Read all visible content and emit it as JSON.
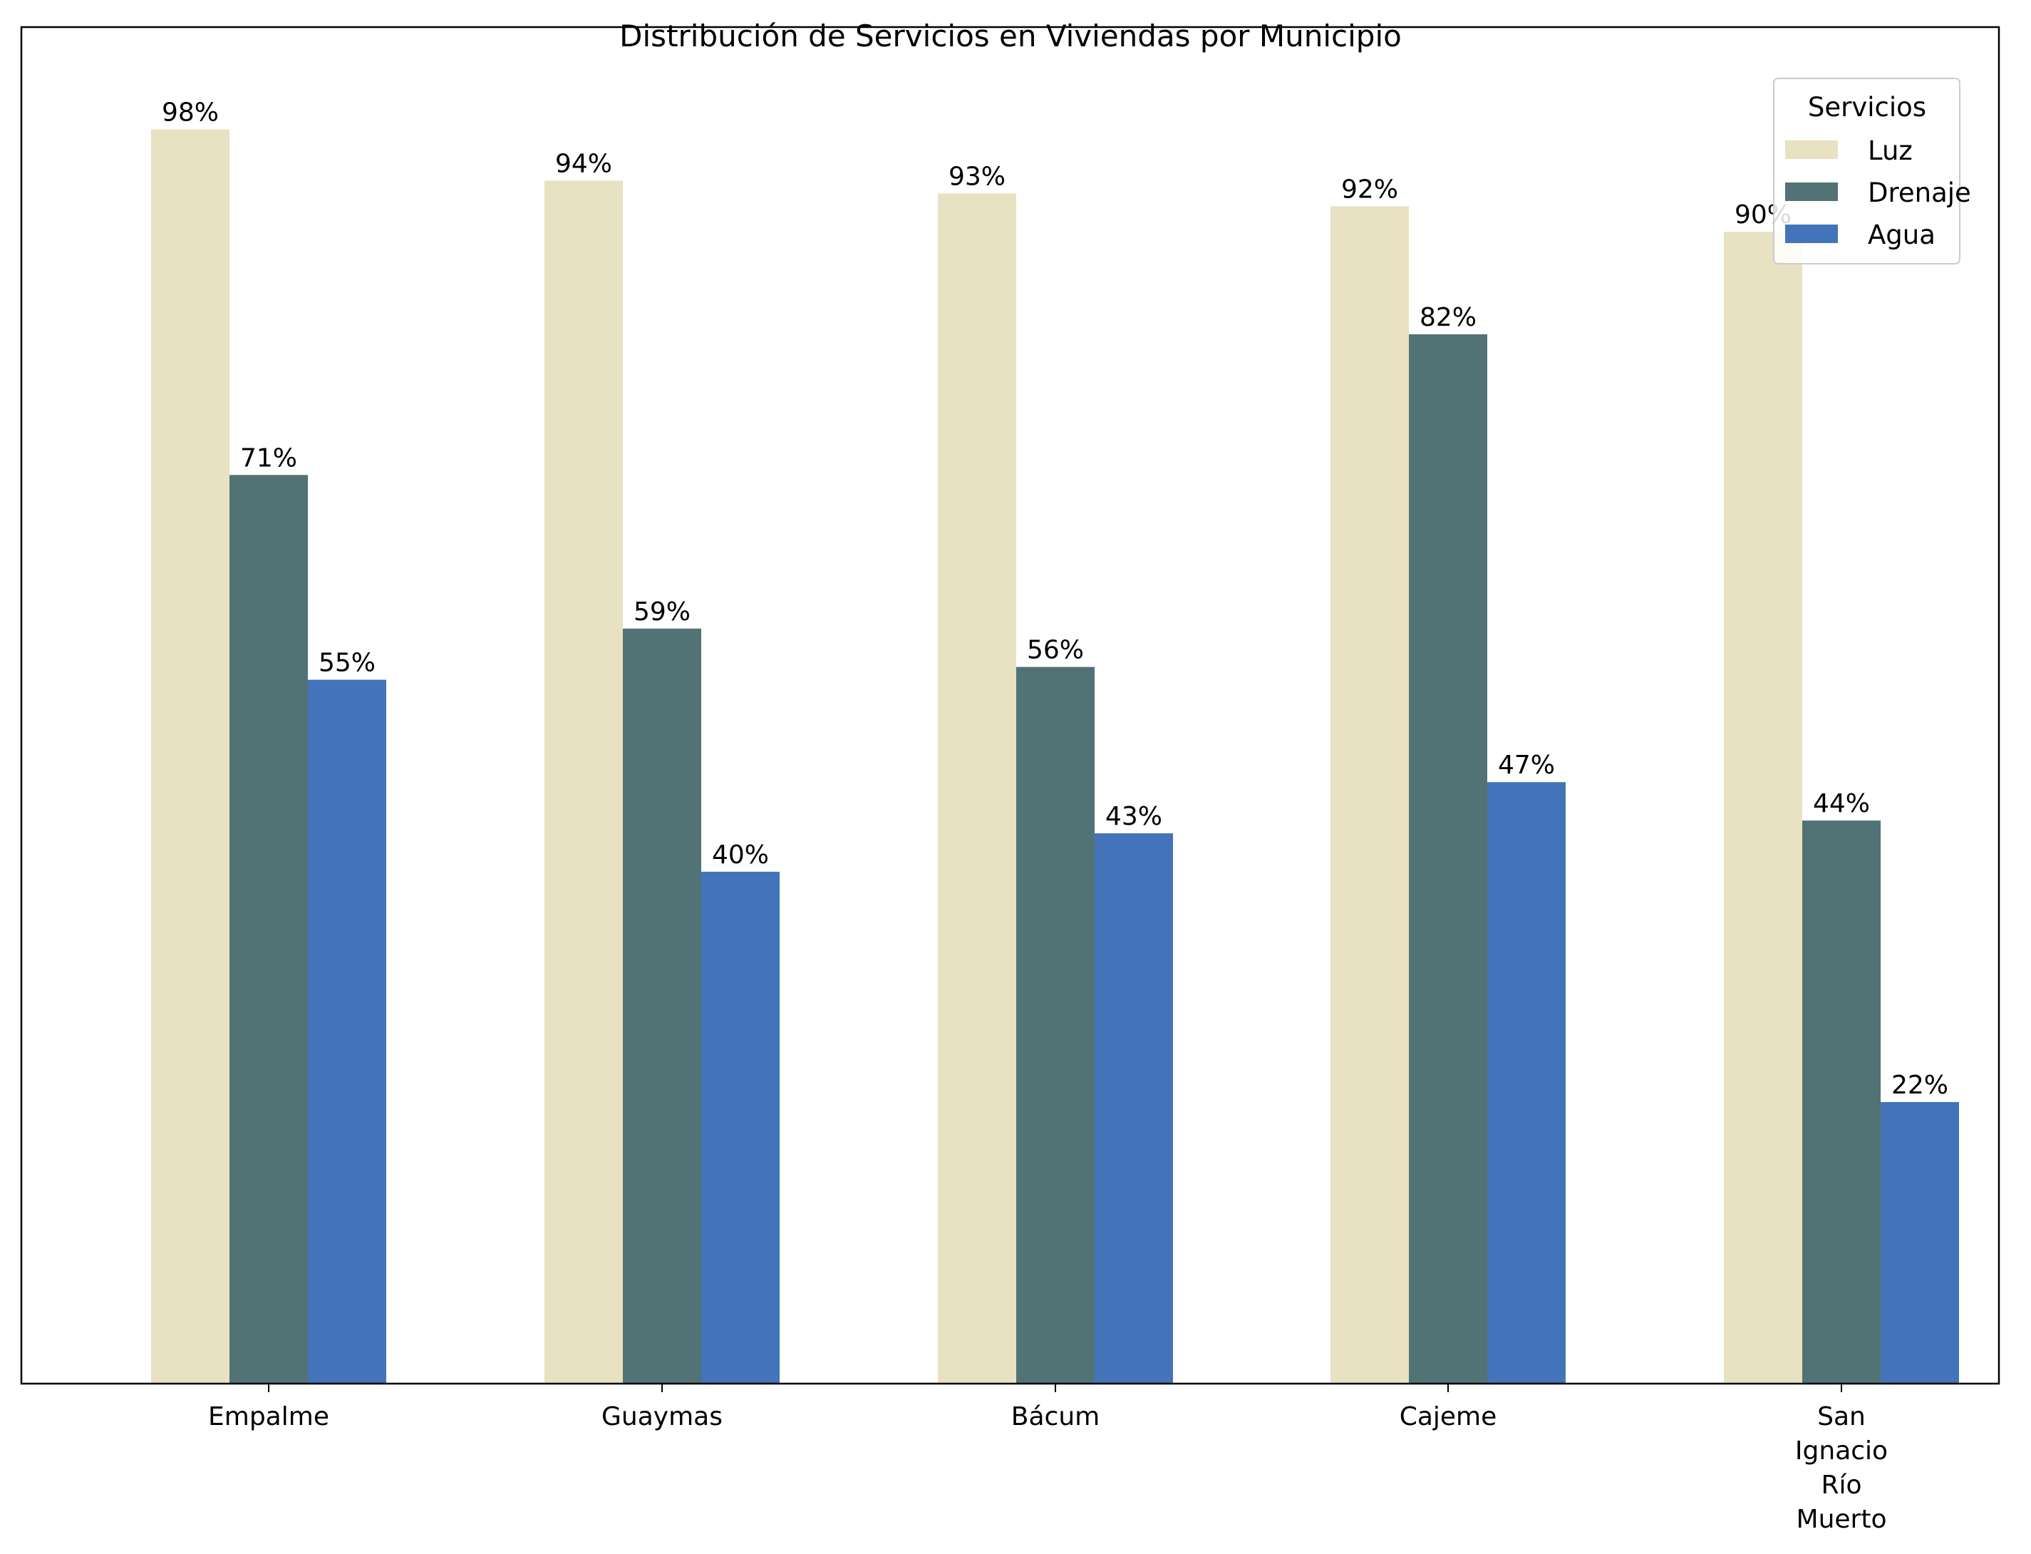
{
  "chart_data": {
    "type": "bar",
    "title": "Distribución de Servicios en Viviendas por Municipio",
    "xlabel": "",
    "ylabel": "",
    "categories": [
      [
        "Empalme"
      ],
      [
        "Guaymas"
      ],
      [
        "Bácum"
      ],
      [
        "Cajeme"
      ],
      [
        "San",
        "Ignacio",
        "Río",
        "Muerto"
      ]
    ],
    "series": [
      {
        "name": "Luz",
        "color": "#e8e1c2",
        "values": [
          98,
          94,
          93,
          92,
          90
        ],
        "labels": [
          "98%",
          "94%",
          "93%",
          "92%",
          "90%"
        ]
      },
      {
        "name": "Drenaje",
        "color": "#527375",
        "values": [
          71,
          59,
          56,
          82,
          44
        ],
        "labels": [
          "71%",
          "59%",
          "56%",
          "82%",
          "44%"
        ]
      },
      {
        "name": "Agua",
        "color": "#4374b9",
        "values": [
          55,
          40,
          43,
          47,
          22
        ],
        "labels": [
          "55%",
          "40%",
          "43%",
          "47%",
          "22%"
        ]
      }
    ],
    "legend": {
      "title": "Servicios",
      "position": "top-right"
    },
    "ylim": [
      0,
      106
    ],
    "grid": false,
    "y_ticks_visible": false
  }
}
